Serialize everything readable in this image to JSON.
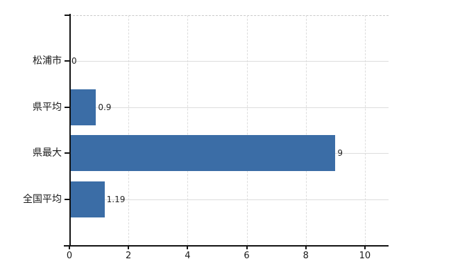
{
  "chart_data": {
    "type": "bar",
    "orientation": "horizontal",
    "title": "",
    "xlabel": "",
    "ylabel": "",
    "categories": [
      "松浦市",
      "県平均",
      "県最大",
      "全国平均"
    ],
    "values": [
      0,
      0.9,
      9,
      1.19
    ],
    "value_labels": [
      "0",
      "0.9",
      "9",
      "1.19"
    ],
    "x_ticks": [
      0,
      2,
      4,
      6,
      8,
      10
    ],
    "xlim": [
      0,
      10.8
    ],
    "grid": true,
    "legend": "none",
    "bar_color": "#3b6da6",
    "grid_color": "#dcdcdc",
    "axis_color": "#111111",
    "text_color": "#1a1a1a"
  }
}
